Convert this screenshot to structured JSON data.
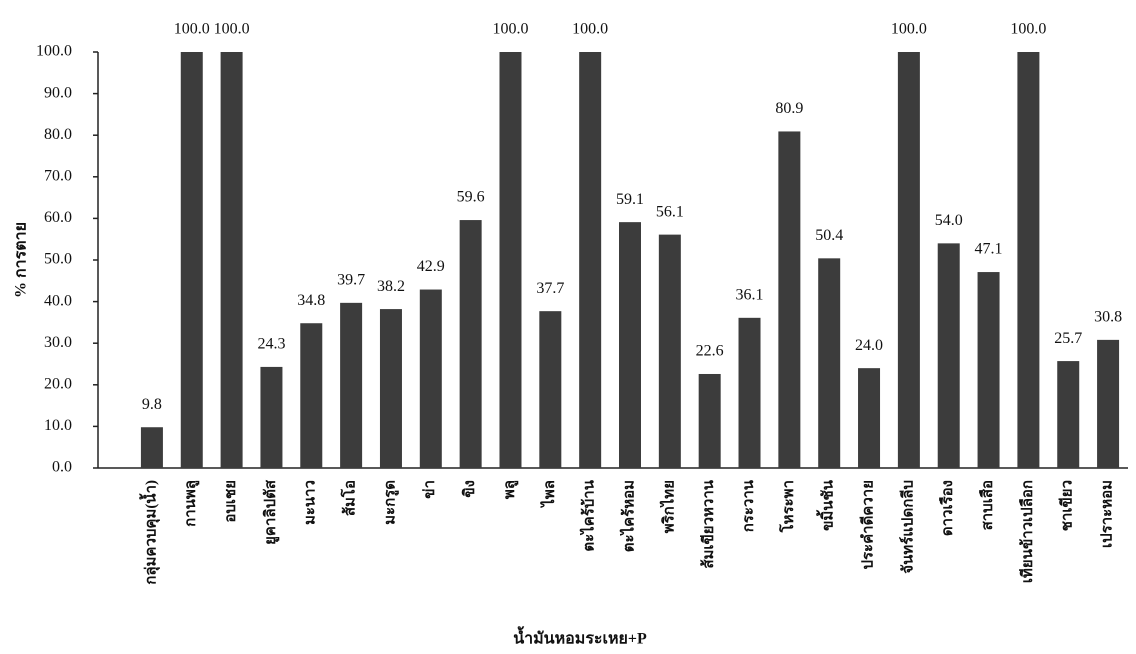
{
  "chart_data": {
    "type": "bar",
    "x_label": "น้ำมันหอมระเหย+P",
    "y_label": "% การตาย",
    "categories": [
      "กลุ่มควบคุม(น้ำ)",
      "กานพลู",
      "อบเชย",
      "ยูคาลิปตัส",
      "มะนาว",
      "ส้มโอ",
      "มะกรูด",
      "ข่า",
      "ขิง",
      "พลู",
      "ไพล",
      "ตะไคร้บ้าน",
      "ตะไคร้หอม",
      "พริกไทย",
      "ส้มเขียวหวาน",
      "กระวาน",
      "โหระพา",
      "ขมิ้นชัน",
      "ประคำดีควาย",
      "จันทร์แปดกลีบ",
      "ดาวเรือง",
      "สาบเสือ",
      "เทียนข้าวเปลือก",
      "ชาเขียว",
      "เปราะหอม"
    ],
    "values": [
      9.8,
      100,
      100,
      24.3,
      34.8,
      39.7,
      38.2,
      42.9,
      59.6,
      100,
      37.7,
      100,
      59.1,
      56.1,
      22.6,
      36.1,
      80.9,
      50.4,
      24.0,
      100,
      54.0,
      47.1,
      100,
      25.7,
      30.8
    ],
    "value_labels": [
      "9.8",
      "100.0",
      "100.0",
      "24.3",
      "34.8",
      "39.7",
      "38.2",
      "42.9",
      "59.6",
      "100.0",
      "37.7",
      "100.0",
      "59.1",
      "56.1",
      "22.6",
      "36.1",
      "80.9",
      "50.4",
      "24.0",
      "100.0",
      "54.0",
      "47.1",
      "100.0",
      "25.7",
      "30.8"
    ],
    "color": "#3c3c3c",
    "ylim": [
      0,
      100
    ],
    "yticks": [
      {
        "value": 0,
        "label": "0.0"
      },
      {
        "value": 10,
        "label": "10.0"
      },
      {
        "value": 20,
        "label": "20.0"
      },
      {
        "value": 30,
        "label": "30.0"
      },
      {
        "value": 40,
        "label": "40.0"
      },
      {
        "value": 50,
        "label": "50.0"
      },
      {
        "value": 60,
        "label": "60.0"
      },
      {
        "value": 70,
        "label": "70.0"
      },
      {
        "value": 80,
        "label": "80.0"
      },
      {
        "value": 90,
        "label": "90.0"
      },
      {
        "value": 100,
        "label": "100.0"
      }
    ],
    "grid": false
  }
}
